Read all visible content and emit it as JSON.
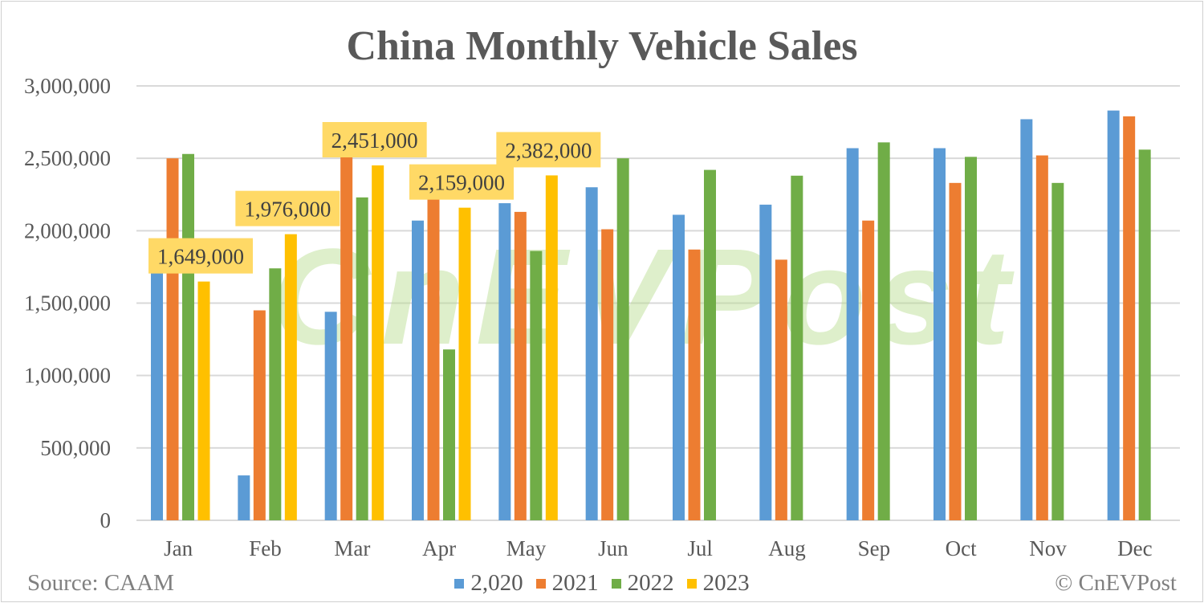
{
  "chart_data": {
    "type": "bar",
    "title": "China Monthly Vehicle Sales",
    "categories": [
      "Jan",
      "Feb",
      "Mar",
      "Apr",
      "May",
      "Jun",
      "Jul",
      "Aug",
      "Sep",
      "Oct",
      "Nov",
      "Dec"
    ],
    "ylim": [
      0,
      3000000
    ],
    "yticks": [
      0,
      500000,
      1000000,
      1500000,
      2000000,
      2500000,
      3000000
    ],
    "ytick_labels": [
      "0",
      "500,000",
      "1,000,000",
      "1,500,000",
      "2,000,000",
      "2,500,000",
      "3,000,000"
    ],
    "grid": true,
    "legend_placement": "bottom",
    "series": [
      {
        "name": "2,020",
        "color": "#5B9BD5",
        "values": [
          1940000,
          310000,
          1440000,
          2070000,
          2190000,
          2300000,
          2110000,
          2180000,
          2570000,
          2570000,
          2770000,
          2830000
        ]
      },
      {
        "name": "2021",
        "color": "#ED7D31",
        "values": [
          2500000,
          1450000,
          2530000,
          2250000,
          2130000,
          2010000,
          1870000,
          1800000,
          2070000,
          2330000,
          2520000,
          2790000
        ]
      },
      {
        "name": "2022",
        "color": "#70AD47",
        "values": [
          2530000,
          1740000,
          2230000,
          1180000,
          1860000,
          2500000,
          2420000,
          2380000,
          2610000,
          2510000,
          2330000,
          2560000
        ]
      },
      {
        "name": "2023",
        "color": "#FFC000",
        "values": [
          1649000,
          1976000,
          2451000,
          2159000,
          2382000,
          null,
          null,
          null,
          null,
          null,
          null,
          null
        ],
        "data_labels": [
          "1,649,000",
          "1,976,000",
          "2,451,000",
          "2,159,000",
          "2,382,000"
        ]
      }
    ],
    "data_label_bg": "#FFD966"
  },
  "source": "Source: CAAM",
  "copyright": "© CnEVPost",
  "watermark": "CnEVPost"
}
